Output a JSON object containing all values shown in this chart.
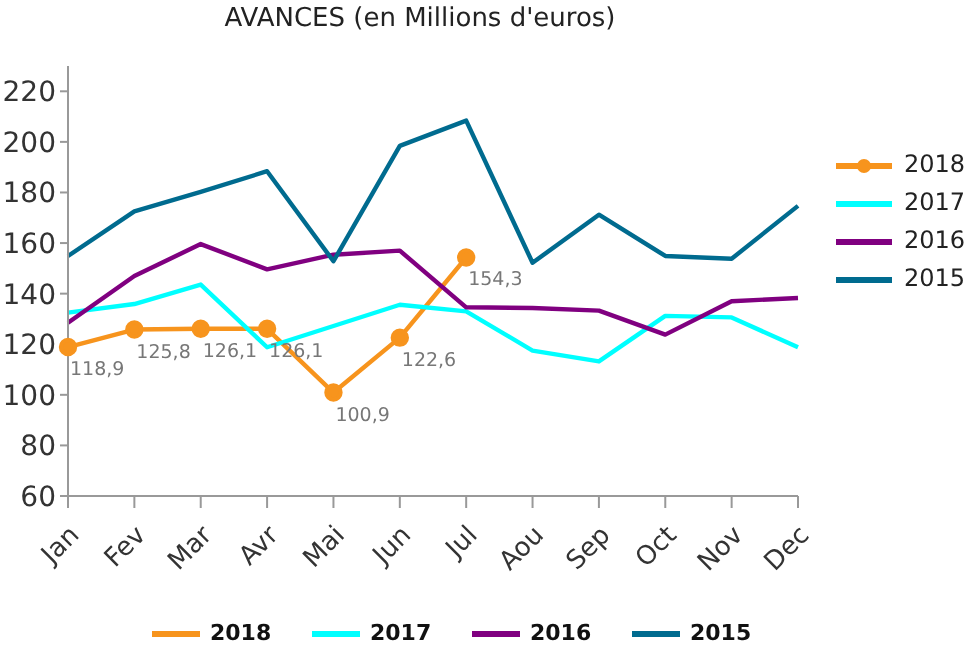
{
  "chart_data": {
    "type": "line",
    "title": "AVANCES (en Millions d'euros)",
    "categories": [
      "Jan",
      "Fev",
      "Mar",
      "Avr",
      "Mai",
      "Jun",
      "Jul",
      "Aou",
      "Sep",
      "Oct",
      "Nov",
      "Dec"
    ],
    "series": [
      {
        "name": "2018",
        "color": "#f7941d",
        "marker": "circle",
        "values": [
          118.9,
          125.8,
          126.1,
          126.1,
          100.9,
          122.6,
          154.3,
          null,
          null,
          null,
          null,
          null
        ],
        "value_labels": [
          "118,9",
          "125,8",
          "126,1",
          "126,1",
          "100,9",
          "122,6",
          "154,3",
          null,
          null,
          null,
          null,
          null
        ]
      },
      {
        "name": "2017",
        "color": "#00ffff",
        "values": [
          132.5,
          135.9,
          143.6,
          118.8,
          127.2,
          135.6,
          133,
          117.5,
          113.2,
          131.2,
          130.6,
          118.8
        ]
      },
      {
        "name": "2016",
        "color": "#800080",
        "values": [
          128.5,
          147,
          159.6,
          149.6,
          155.4,
          157,
          134.6,
          134.3,
          133.3,
          123.8,
          137,
          138.3
        ]
      },
      {
        "name": "2015",
        "color": "#006b8f",
        "values": [
          154.9,
          172.5,
          180.2,
          188.4,
          152.8,
          198.4,
          208.4,
          152.2,
          171.2,
          154.9,
          153.8,
          174.7
        ]
      }
    ],
    "ylim": [
      60,
      230
    ],
    "yticks": [
      60,
      80,
      100,
      120,
      140,
      160,
      180,
      200,
      220
    ],
    "legend": "bottom"
  }
}
